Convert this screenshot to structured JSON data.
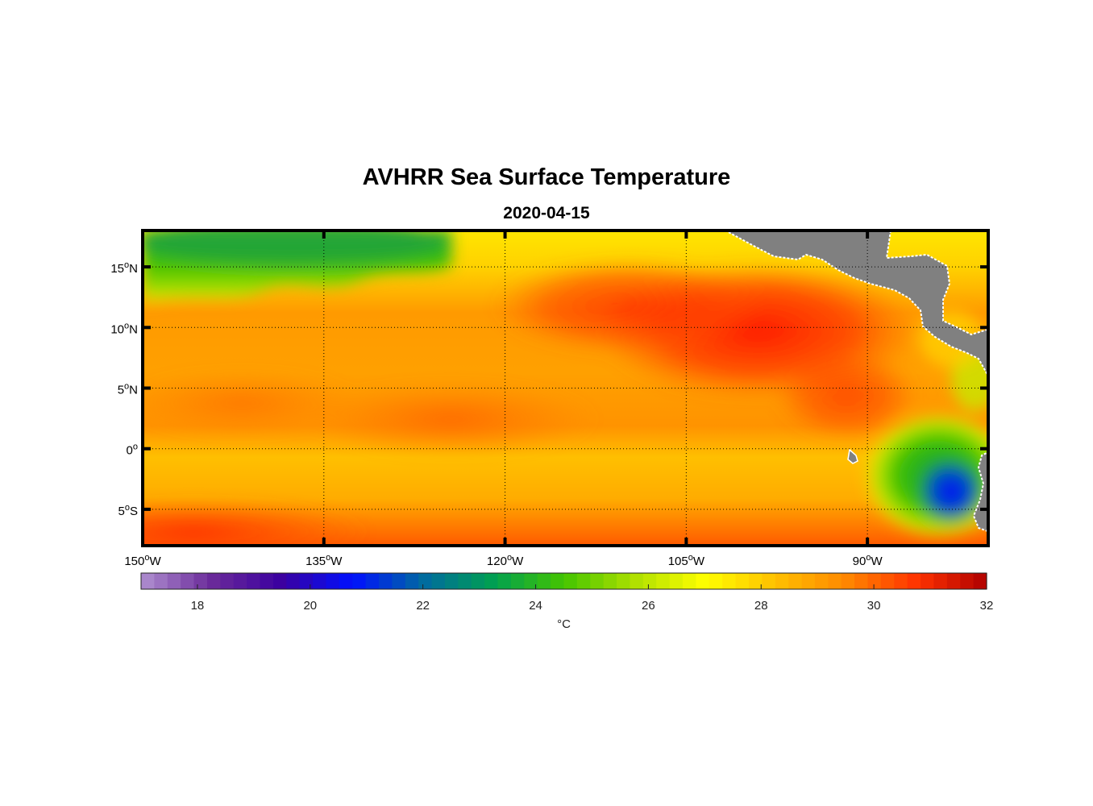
{
  "chart_data": {
    "type": "heatmap",
    "title": "AVHRR Sea Surface Temperature",
    "subtitle": "2020-04-15",
    "variable": "Sea surface temperature",
    "units": "°C",
    "lon_range": [
      -150,
      -80
    ],
    "lat_range": [
      -8,
      18
    ],
    "lon_ticks": [
      {
        "value": -150,
        "label": "150",
        "suffix": "W"
      },
      {
        "value": -135,
        "label": "135",
        "suffix": "W"
      },
      {
        "value": -120,
        "label": "120",
        "suffix": "W"
      },
      {
        "value": -105,
        "label": "105",
        "suffix": "W"
      },
      {
        "value": -90,
        "label": "90",
        "suffix": "W"
      }
    ],
    "lat_ticks": [
      {
        "value": 15,
        "label": "15",
        "suffix": "N"
      },
      {
        "value": 10,
        "label": "10",
        "suffix": "N"
      },
      {
        "value": 5,
        "label": "5",
        "suffix": "N"
      },
      {
        "value": 0,
        "label": "0",
        "suffix": ""
      },
      {
        "value": -5,
        "label": "5",
        "suffix": "S"
      }
    ],
    "degree_symbol": "o",
    "grid": "dotted",
    "colorbar": {
      "min": 17,
      "max": 32,
      "ticks": [
        18,
        20,
        22,
        24,
        26,
        28,
        30,
        32
      ],
      "label": "°C",
      "orientation": "horizontal",
      "placement": "bottom"
    },
    "sst_regions": [
      {
        "area": "north-west corner (15N-18N, 150W-130W)",
        "approx_celsius": 24.5
      },
      {
        "area": "band 8N-14N, 110W-95W",
        "approx_celsius": 30.5
      },
      {
        "area": "equatorial band 0-5N, 135W-110W",
        "approx_celsius": 29.0
      },
      {
        "area": "south of equator 0-8S",
        "approx_celsius": 27.5
      },
      {
        "area": "south-west corner near 8S, 150W",
        "approx_celsius": 29.5
      },
      {
        "area": "cold tongue near 5S, 82W",
        "approx_celsius": 20.5
      }
    ]
  },
  "colors": {
    "land": "#808080",
    "coast": "#ffffff",
    "frame": "#000000",
    "colormap": [
      "#b090d0",
      "#6a2a9a",
      "#3a00a0",
      "#0010ff",
      "#006aa0",
      "#00a050",
      "#44c400",
      "#aee000",
      "#ffff00",
      "#ffc000",
      "#ff8800",
      "#ff3300",
      "#b00000"
    ]
  }
}
